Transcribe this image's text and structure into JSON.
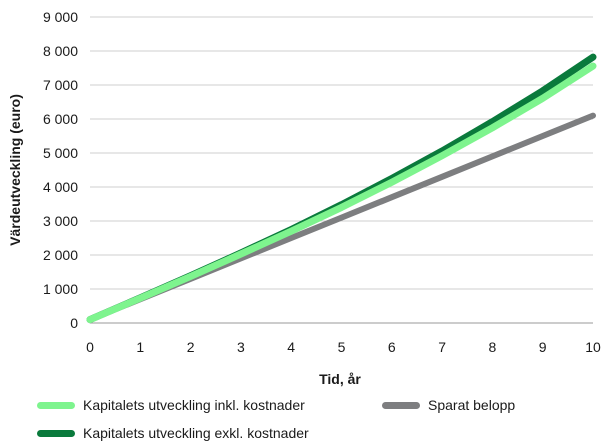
{
  "chart_data": {
    "type": "line",
    "xlabel": "Tid, år",
    "ylabel": "Värdeutveckling (euro)",
    "xlim": [
      0,
      10
    ],
    "ylim": [
      0,
      9000
    ],
    "x_ticks": [
      "0",
      "1",
      "2",
      "3",
      "4",
      "5",
      "6",
      "7",
      "8",
      "9",
      "10"
    ],
    "y_ticks": [
      "0",
      "1 000",
      "2 000",
      "3 000",
      "4 000",
      "5 000",
      "6 000",
      "7 000",
      "8 000",
      "9 000"
    ],
    "grid": "horizontal",
    "legend_position": "bottom",
    "x": [
      0,
      1,
      2,
      3,
      4,
      5,
      6,
      7,
      8,
      9,
      10
    ],
    "series": [
      {
        "name": "Sparat belopp",
        "color": "#7d7e80",
        "values": [
          100,
          700,
          1300,
          1900,
          2500,
          3100,
          3700,
          4300,
          4900,
          5500,
          6100
        ]
      },
      {
        "name": "Kapitalets utveckling exkl. kostnader",
        "color": "#0a7a3c",
        "values": [
          100,
          740,
          1390,
          2060,
          2750,
          3480,
          4250,
          5060,
          5920,
          6830,
          7820
        ]
      },
      {
        "name": "Kapitalets utveckling inkl. kostnader",
        "color": "#7ef48e",
        "values": [
          100,
          730,
          1370,
          2030,
          2700,
          3400,
          4140,
          4920,
          5740,
          6610,
          7560
        ]
      }
    ]
  },
  "legend": {
    "items": [
      {
        "label": "Kapitalets utveckling inkl. kostnader",
        "color": "#7ef48e"
      },
      {
        "label": "Sparat belopp",
        "color": "#7d7e80"
      },
      {
        "label": "Kapitalets utveckling exkl. kostnader",
        "color": "#0a7a3c"
      }
    ]
  }
}
